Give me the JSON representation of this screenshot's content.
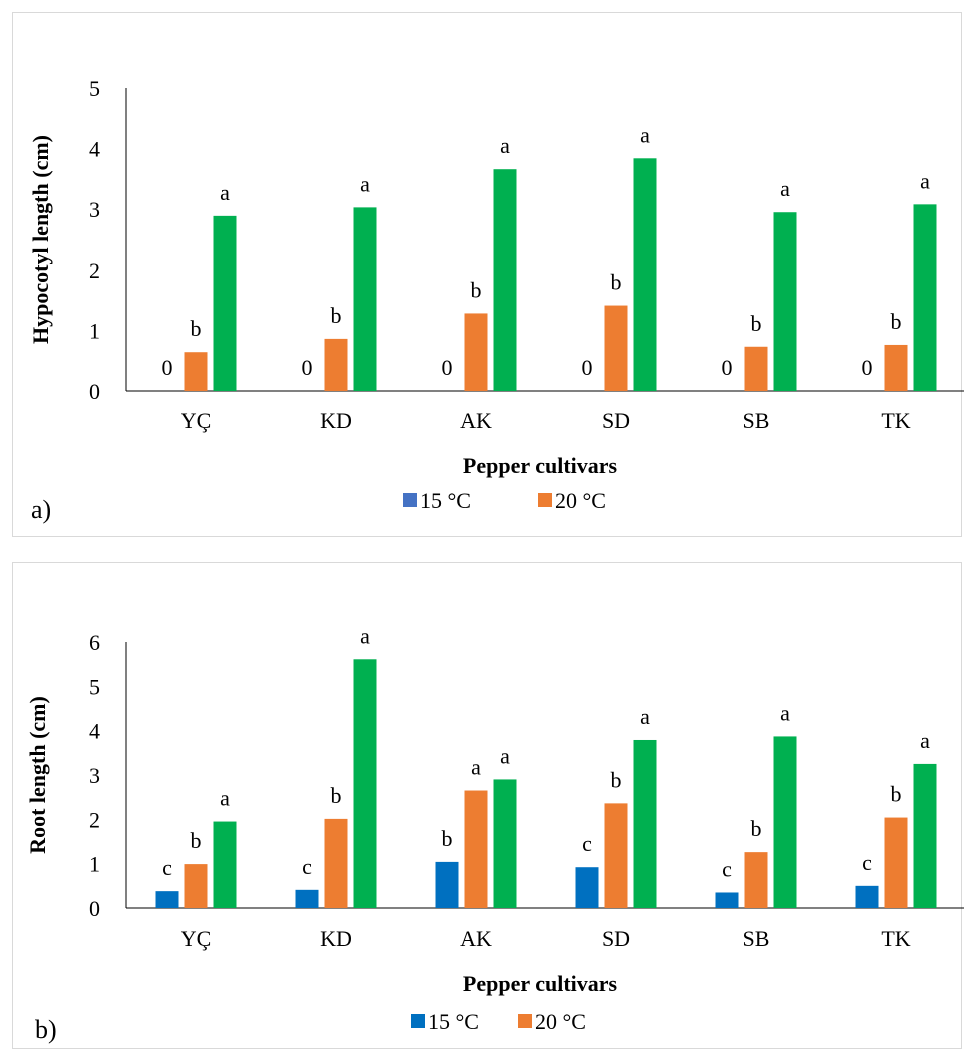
{
  "chart_data": [
    {
      "type": "bar",
      "panel_label": "a)",
      "xlabel": "Pepper cultivars",
      "ylabel": "Hypocotyl length (cm)",
      "categories": [
        "YÇ",
        "KD",
        "AK",
        "SD",
        "SB",
        "TK"
      ],
      "ylim": [
        0,
        5
      ],
      "yticks": [
        0,
        1,
        2,
        3,
        4,
        5
      ],
      "grid": false,
      "legend_placement": "bottom",
      "legend_series": [
        0,
        1
      ],
      "series": [
        {
          "name": "15 °C",
          "color": "#4472c4",
          "values": [
            0,
            0,
            0,
            0,
            0,
            0
          ],
          "labels": [
            "0",
            "0",
            "0",
            "0",
            "0",
            "0"
          ]
        },
        {
          "name": "20 °C",
          "color": "#ed7d31",
          "values": [
            0.64,
            0.86,
            1.28,
            1.41,
            0.73,
            0.76
          ],
          "labels": [
            "b",
            "b",
            "b",
            "b",
            "b",
            "b"
          ]
        },
        {
          "name": "",
          "color": "#00b050",
          "values": [
            2.89,
            3.03,
            3.66,
            3.84,
            2.95,
            3.08
          ],
          "labels": [
            "a",
            "a",
            "a",
            "a",
            "a",
            "a"
          ]
        }
      ]
    },
    {
      "type": "bar",
      "panel_label": "b)",
      "xlabel": "Pepper cultivars",
      "ylabel": "Root length (cm)",
      "categories": [
        "YÇ",
        "KD",
        "AK",
        "SD",
        "SB",
        "TK"
      ],
      "ylim": [
        0,
        6
      ],
      "yticks": [
        0,
        1,
        2,
        3,
        4,
        5,
        6
      ],
      "grid": false,
      "legend_placement": "bottom",
      "legend_series": [
        0,
        1
      ],
      "series": [
        {
          "name": "15 °C",
          "color": "#0070c0",
          "values": [
            0.38,
            0.41,
            1.04,
            0.92,
            0.35,
            0.5
          ],
          "labels": [
            "c",
            "c",
            "b",
            "c",
            "c",
            "c"
          ]
        },
        {
          "name": "20 °C",
          "color": "#ed7d31",
          "values": [
            0.99,
            2.01,
            2.65,
            2.36,
            1.26,
            2.04
          ],
          "labels": [
            "b",
            "b",
            "a",
            "b",
            "b",
            "b"
          ]
        },
        {
          "name": "",
          "color": "#00b050",
          "values": [
            1.95,
            5.61,
            2.9,
            3.79,
            3.87,
            3.25
          ],
          "labels": [
            "a",
            "a",
            "a",
            "a",
            "a",
            "a"
          ]
        }
      ]
    }
  ]
}
